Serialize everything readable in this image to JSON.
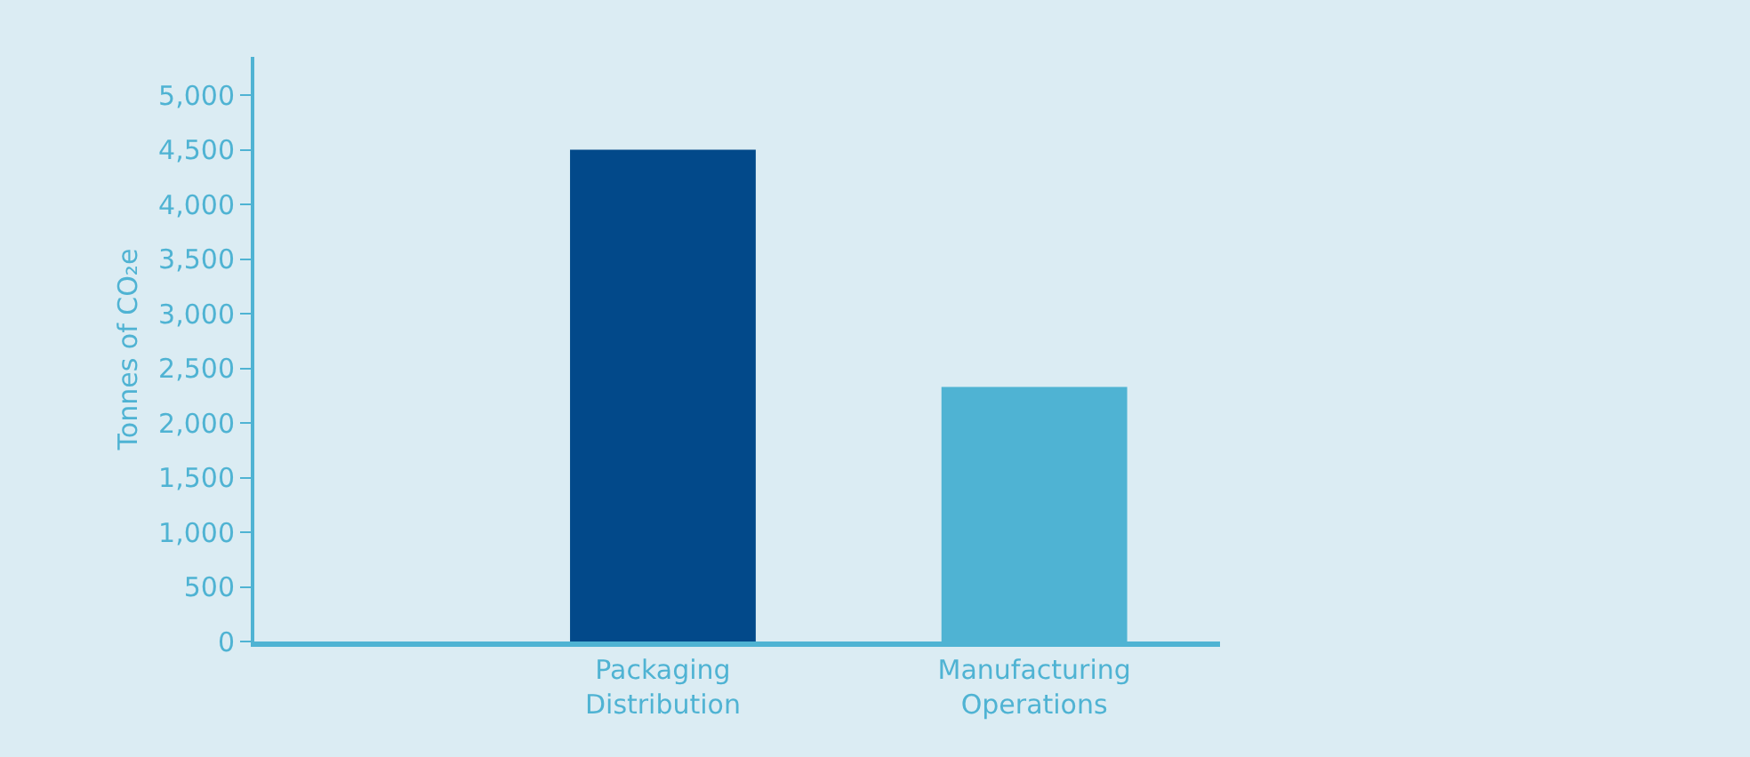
{
  "chart_data": {
    "type": "bar",
    "ylabel": "Tonnes of CO₂e",
    "categories": [
      "Packaging\nDistribution",
      "Manufacturing\nOperations"
    ],
    "values": [
      4500,
      2330
    ],
    "colors": [
      "#02498a",
      "#4fb3d3"
    ],
    "ylim": [
      0,
      5350
    ],
    "yticks": [
      0,
      {
        "value": 500,
        "label": "500"
      },
      {
        "value": 1000,
        "label": "1,000"
      },
      {
        "value": 1500,
        "label": "1,500"
      },
      {
        "value": 2000,
        "label": "2,000"
      },
      {
        "value": 2500,
        "label": "2,500"
      },
      {
        "value": 3000,
        "label": "3,000"
      },
      {
        "value": 3500,
        "label": "3,500"
      },
      {
        "value": 4000,
        "label": "4,000"
      },
      {
        "value": 4500,
        "label": "4,500"
      },
      {
        "value": 5000,
        "label": "5,000"
      }
    ],
    "grid": false
  }
}
